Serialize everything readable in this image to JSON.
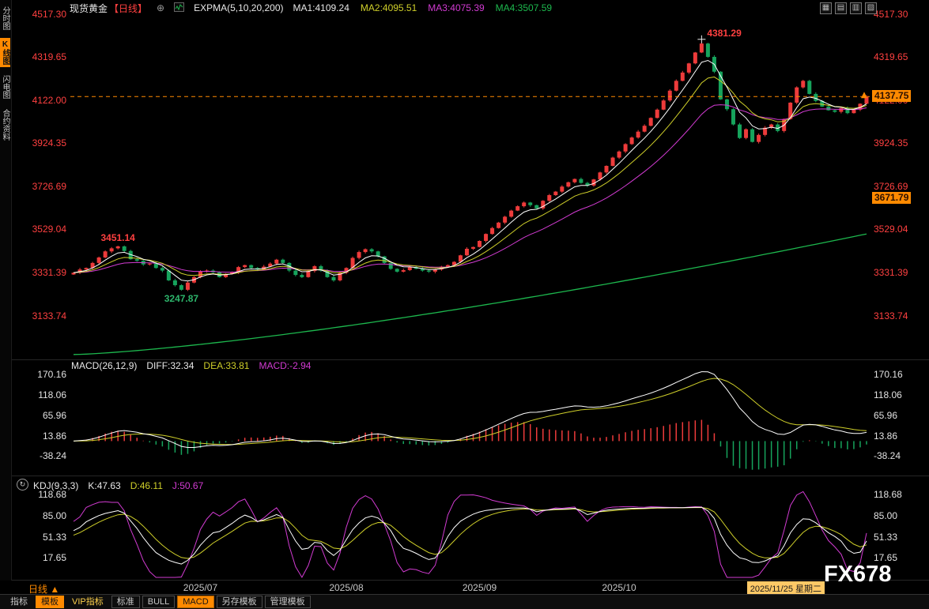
{
  "header": {
    "symbol": "现货黄金",
    "period_tag": "【日线】",
    "add_icon": "⊕",
    "indicator_label": "EXPMA(5,10,20,200)",
    "ma_values": [
      {
        "label": "MA1:4109.24",
        "color": "#e8e8e8"
      },
      {
        "label": "MA2:4095.51",
        "color": "#cfcf2a"
      },
      {
        "label": "MA3:4075.39",
        "color": "#d23bd2"
      },
      {
        "label": "MA4:3507.59",
        "color": "#1db84e"
      }
    ],
    "window_controls": [
      {
        "name": "tile-grid-icon",
        "glyph": "▦"
      },
      {
        "name": "tile-rows-icon",
        "glyph": "▤"
      },
      {
        "name": "tile-columns-icon",
        "glyph": "▥"
      },
      {
        "name": "new-window-icon",
        "glyph": "▧"
      }
    ]
  },
  "sidebar": {
    "items": [
      {
        "label": "分时图",
        "active": false
      },
      {
        "label": "K线图",
        "active": true
      },
      {
        "label": "闪电图",
        "active": false
      },
      {
        "label": "合约资料",
        "active": false
      }
    ]
  },
  "price_tags": {
    "current": "4137.75",
    "secondary": "3671.79"
  },
  "macd_header": {
    "title": "MACD(26,12,9)",
    "diff": "DIFF:32.34",
    "dea": "DEA:33.81",
    "macd": "MACD:-2.94"
  },
  "kdj_header": {
    "title": "KDJ(9,3,3)",
    "k": "K:47.63",
    "d": "D:46.11",
    "j": "J:50.67"
  },
  "footer": {
    "period": "日线",
    "period_arrow": "▲",
    "date_highlight": "2025/11/25 星期二",
    "watermark": "FX678"
  },
  "toolbar": {
    "items": [
      {
        "label": "指标",
        "variant": "plain"
      },
      {
        "label": "模板",
        "variant": "active"
      },
      {
        "label": "VIP指标",
        "variant": "vip"
      },
      {
        "label": "标准",
        "variant": "outlined"
      },
      {
        "label": "BULL",
        "variant": "outlined"
      },
      {
        "label": "MACD",
        "variant": "active-outlined"
      },
      {
        "label": "另存模板",
        "variant": "outlined"
      },
      {
        "label": "管理模板",
        "variant": "outlined"
      }
    ]
  },
  "chart_data": {
    "type": "candlestick",
    "symbol": "现货黄金",
    "period": "日线",
    "price_axis_labels": [
      "4517.30",
      "4319.65",
      "4122.00",
      "3924.35",
      "3726.69",
      "3529.04",
      "3331.39",
      "3133.74"
    ],
    "macd_axis_labels": [
      "170.16",
      "118.06",
      "65.96",
      "13.86",
      "-38.24"
    ],
    "kdj_axis_labels": [
      "118.68",
      "85.00",
      "51.33",
      "17.65"
    ],
    "closes": [
      3330,
      3345,
      3352,
      3375,
      3400,
      3428,
      3442,
      3451,
      3430,
      3392,
      3385,
      3368,
      3372,
      3352,
      3340,
      3295,
      3273,
      3252,
      3285,
      3310,
      3335,
      3340,
      3332,
      3310,
      3325,
      3332,
      3356,
      3365,
      3352,
      3345,
      3358,
      3372,
      3390,
      3375,
      3340,
      3320,
      3310,
      3338,
      3360,
      3340,
      3310,
      3295,
      3330,
      3352,
      3398,
      3425,
      3438,
      3428,
      3405,
      3375,
      3348,
      3335,
      3342,
      3356,
      3348,
      3340,
      3335,
      3345,
      3358,
      3365,
      3380,
      3410,
      3440,
      3448,
      3476,
      3508,
      3535,
      3560,
      3587,
      3615,
      3635,
      3652,
      3640,
      3625,
      3660,
      3686,
      3702,
      3725,
      3745,
      3760,
      3742,
      3730,
      3758,
      3790,
      3820,
      3858,
      3886,
      3920,
      3950,
      3977,
      4004,
      4040,
      4078,
      4120,
      4165,
      4210,
      4248,
      4290,
      4340,
      4381,
      4320,
      4252,
      4125,
      4080,
      4010,
      3948,
      3988,
      3930,
      3962,
      3995,
      4010,
      3980,
      4035,
      4110,
      4180,
      4210,
      4150,
      4118,
      4092,
      4075,
      4068,
      4085,
      4062,
      4078,
      4105,
      4138
    ],
    "month_ticks": [
      {
        "label": "2025/07",
        "day": 20
      },
      {
        "label": "2025/08",
        "day": 43
      },
      {
        "label": "2025/09",
        "day": 64
      },
      {
        "label": "2025/10",
        "day": 86
      },
      {
        "label": "2025/11",
        "day": 109
      }
    ],
    "annotations": [
      {
        "day": 7,
        "text": "3451.14",
        "placement": "above",
        "color": "#ff4040"
      },
      {
        "day": 17,
        "text": "3247.87",
        "placement": "below",
        "color": "#2db56b"
      },
      {
        "day": 99,
        "text": "4381.29",
        "placement": "above-right",
        "color": "#ff4040",
        "marker": "cross"
      }
    ],
    "current_price": 4137.75,
    "secondary_price": 3671.79,
    "price_axis_range": {
      "top": 4517.3,
      "bottom": 3133.74
    },
    "ema_settings": "EXPMA(5,10,20,200)",
    "ema200_line": {
      "start": 2955,
      "end": 3508
    },
    "macd": {
      "params": [
        26,
        12,
        9
      ],
      "diff": 32.34,
      "dea": 33.81,
      "hist": -2.94
    },
    "kdj": {
      "params": [
        9,
        3,
        3
      ],
      "k": 47.63,
      "d": 46.11,
      "j": 50.67
    },
    "colors": {
      "up": "#ee3b3b",
      "down": "#16a35c",
      "ma5": "#ffffff",
      "ma10": "#cfcf2a",
      "ma20": "#d23bd2",
      "ma200": "#1db84e",
      "axis": "#ff4040",
      "accent": "#ff8a00"
    }
  }
}
